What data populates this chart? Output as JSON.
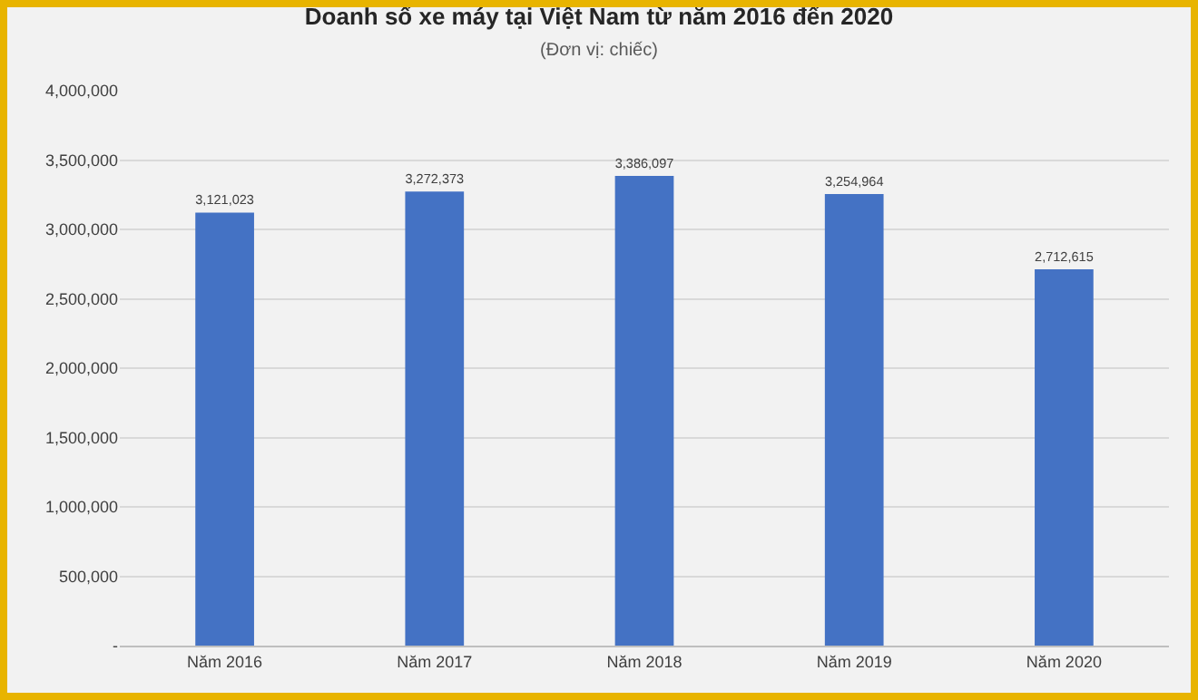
{
  "chart_data": {
    "type": "bar",
    "title": "Doanh số xe máy tại Việt Nam từ năm 2016 đến 2020",
    "subtitle": "(Đơn vị: chiếc)",
    "categories": [
      "Năm 2016",
      "Năm 2017",
      "Năm 2018",
      "Năm 2019",
      "Năm 2020"
    ],
    "values": [
      3121023,
      3272373,
      3386097,
      3254964,
      2712615
    ],
    "value_labels": [
      "3,121,023",
      "3,272,373",
      "3,386,097",
      "3,254,964",
      "2,712,615"
    ],
    "color": "#4472c4",
    "ylim": [
      0,
      4000000
    ],
    "yticks": [
      {
        "value": 0,
        "label": "-"
      },
      {
        "value": 500000,
        "label": "500,000"
      },
      {
        "value": 1000000,
        "label": "1,000,000"
      },
      {
        "value": 1500000,
        "label": "1,500,000"
      },
      {
        "value": 2000000,
        "label": "2,000,000"
      },
      {
        "value": 2500000,
        "label": "2,500,000"
      },
      {
        "value": 3000000,
        "label": "3,000,000"
      },
      {
        "value": 3500000,
        "label": "3,500,000"
      },
      {
        "value": 4000000,
        "label": "4,000,000"
      }
    ],
    "grid": "y",
    "legend": false
  }
}
